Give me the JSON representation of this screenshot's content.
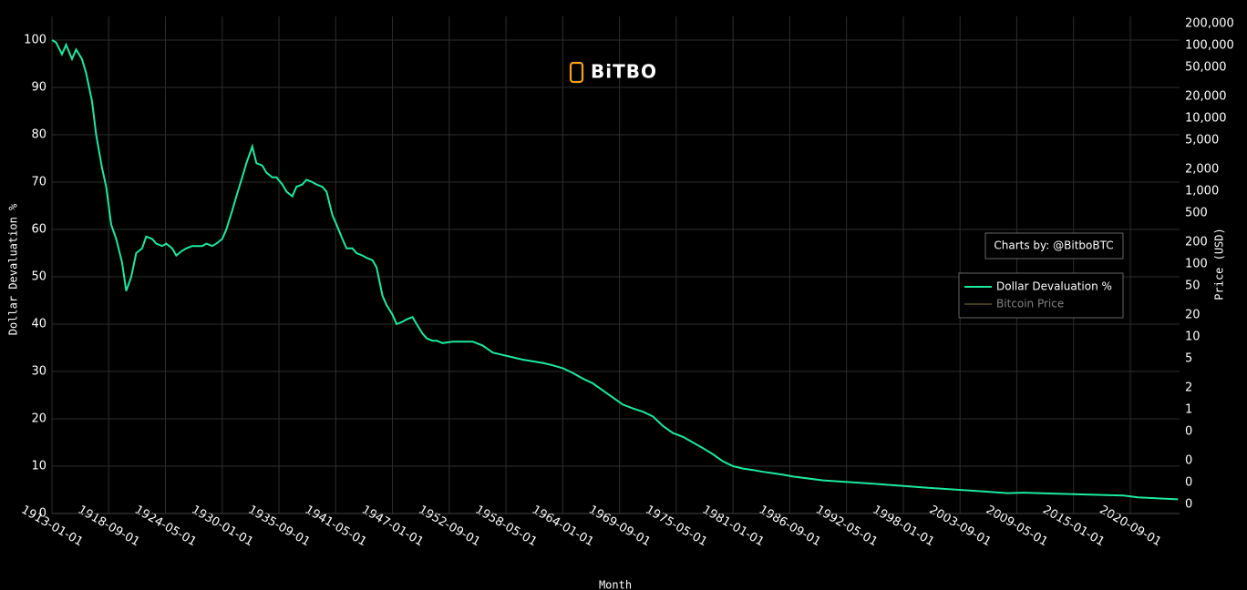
{
  "logo": "BiTBO",
  "chart_data": {
    "type": "line",
    "x_label": "Month",
    "y_label": "Dollar Devaluation %",
    "y2_label": "Price (USD)",
    "annotation": "Charts by: @BitboBTC",
    "grid": true,
    "legend_position": "right",
    "x": [
      "1913-01-01",
      "1913-06-01",
      "1914-01-01",
      "1914-06-01",
      "1915-01-01",
      "1915-06-01",
      "1916-01-01",
      "1916-06-01",
      "1917-01-01",
      "1917-06-01",
      "1918-01-01",
      "1918-06-01",
      "1918-12-01",
      "1919-06-01",
      "1920-01-01",
      "1920-06-01",
      "1920-12-01",
      "1921-06-01",
      "1922-01-01",
      "1922-06-01",
      "1923-01-01",
      "1923-06-01",
      "1924-01-01",
      "1924-06-01",
      "1925-01-01",
      "1925-06-01",
      "1926-01-01",
      "1926-06-01",
      "1927-01-01",
      "1928-01-01",
      "1928-06-01",
      "1929-01-01",
      "1929-06-01",
      "1930-01-01",
      "1930-06-01",
      "1931-01-01",
      "1931-06-01",
      "1932-01-01",
      "1932-06-01",
      "1933-01-01",
      "1933-06-01",
      "1934-01-01",
      "1934-06-01",
      "1935-01-01",
      "1935-06-01",
      "1936-01-01",
      "1936-06-01",
      "1937-01-01",
      "1937-06-01",
      "1938-01-01",
      "1938-06-01",
      "1939-01-01",
      "1939-06-01",
      "1940-01-01",
      "1940-06-01",
      "1941-01-01",
      "1941-06-01",
      "1942-01-01",
      "1942-06-01",
      "1943-01-01",
      "1943-06-01",
      "1944-01-01",
      "1944-06-01",
      "1945-01-01",
      "1945-06-01",
      "1946-01-01",
      "1946-06-01",
      "1947-01-01",
      "1947-06-01",
      "1948-01-01",
      "1948-06-01",
      "1949-01-01",
      "1949-06-01",
      "1950-01-01",
      "1950-06-01",
      "1951-01-01",
      "1951-06-01",
      "1952-01-01",
      "1953-01-01",
      "1954-01-01",
      "1955-01-01",
      "1956-01-01",
      "1957-01-01",
      "1958-01-01",
      "1959-01-01",
      "1960-01-01",
      "1962-01-01",
      "1963-01-01",
      "1964-01-01",
      "1965-01-01",
      "1966-01-01",
      "1967-01-01",
      "1968-01-01",
      "1969-01-01",
      "1970-01-01",
      "1971-01-01",
      "1972-01-01",
      "1973-01-01",
      "1974-01-01",
      "1975-01-01",
      "1976-01-01",
      "1977-01-01",
      "1978-01-01",
      "1979-01-01",
      "1980-01-01",
      "1981-01-01",
      "1982-01-01",
      "1983-01-01",
      "1984-01-01",
      "1985-01-01",
      "1986-01-01",
      "1987-01-01",
      "1990-01-01",
      "1995-01-01",
      "2000-01-01",
      "2005-01-01",
      "2008-06-01",
      "2010-01-01",
      "2015-01-01",
      "2020-01-01",
      "2021-06-01",
      "2025-06-01"
    ],
    "series": [
      {
        "name": "Dollar Devaluation %",
        "color": "#1de9a0",
        "values": [
          100,
          99.5,
          97,
          99,
          96,
          98,
          96,
          93,
          87,
          80,
          73,
          69,
          61,
          58,
          53,
          47,
          50,
          55,
          56,
          58.5,
          58,
          57,
          56.5,
          57,
          56,
          54.5,
          55.5,
          56,
          56.5,
          56.5,
          57,
          56.5,
          57,
          58,
          60,
          64,
          67,
          71,
          74,
          77.5,
          74,
          73.5,
          72,
          71,
          71,
          69.5,
          68,
          67,
          69,
          69.5,
          70.5,
          70,
          69.5,
          69,
          68,
          63,
          61,
          58,
          56,
          56,
          55,
          54.5,
          54,
          53.5,
          52,
          46,
          44,
          42,
          40,
          40.5,
          41,
          41.5,
          40,
          38,
          37,
          36.5,
          36.5,
          36,
          36.3,
          36.3,
          36.3,
          35.5,
          34,
          33.5,
          33,
          32.5,
          31.8,
          31.3,
          30.7,
          29.7,
          28.5,
          27.5,
          26,
          24.5,
          23,
          22.2,
          21.5,
          20.5,
          18.5,
          17,
          16.2,
          15,
          13.8,
          12.5,
          11,
          10,
          9.5,
          9.2,
          8.8,
          8.5,
          8.2,
          7.8,
          7,
          6.3,
          5.5,
          4.8,
          4.3,
          4.4,
          4.1,
          3.8,
          3.4,
          3.0
        ]
      },
      {
        "name": "Bitcoin Price",
        "color": "#8a7a2e",
        "axis": "y2",
        "visible": "legendonly"
      }
    ],
    "xlim": [
      "1913-01-01",
      "2025-08-01"
    ],
    "xticks": [
      "1913-01-01",
      "1918-09-01",
      "1924-05-01",
      "1930-01-01",
      "1935-09-01",
      "1941-05-01",
      "1947-01-01",
      "1952-09-01",
      "1958-05-01",
      "1964-01-01",
      "1969-09-01",
      "1975-05-01",
      "1981-01-01",
      "1986-09-01",
      "1992-05-01",
      "1998-01-01",
      "2003-09-01",
      "2009-05-01",
      "2015-01-01",
      "2020-09-01"
    ],
    "ylim": [
      0,
      105
    ],
    "yticks": [
      0,
      10,
      20,
      30,
      40,
      50,
      60,
      70,
      80,
      90,
      100
    ],
    "y2_log": true,
    "y2lim": [
      0.0375,
      250000
    ],
    "y2ticks": [
      {
        "value": 200000,
        "label": "200,000"
      },
      {
        "value": 100000,
        "label": "100,000"
      },
      {
        "value": 50000,
        "label": "50,000"
      },
      {
        "value": 20000,
        "label": "20,000"
      },
      {
        "value": 10000,
        "label": "10,000"
      },
      {
        "value": 5000,
        "label": "5,000"
      },
      {
        "value": 2000,
        "label": "2,000"
      },
      {
        "value": 1000,
        "label": "1,000"
      },
      500,
      200,
      100,
      50,
      20,
      10,
      5,
      2,
      1,
      {
        "value": 0.5,
        "label": "0"
      },
      {
        "value": 0.2,
        "label": "0"
      },
      {
        "value": 0.1,
        "label": "0"
      },
      {
        "value": 0.05,
        "label": "0"
      }
    ]
  }
}
